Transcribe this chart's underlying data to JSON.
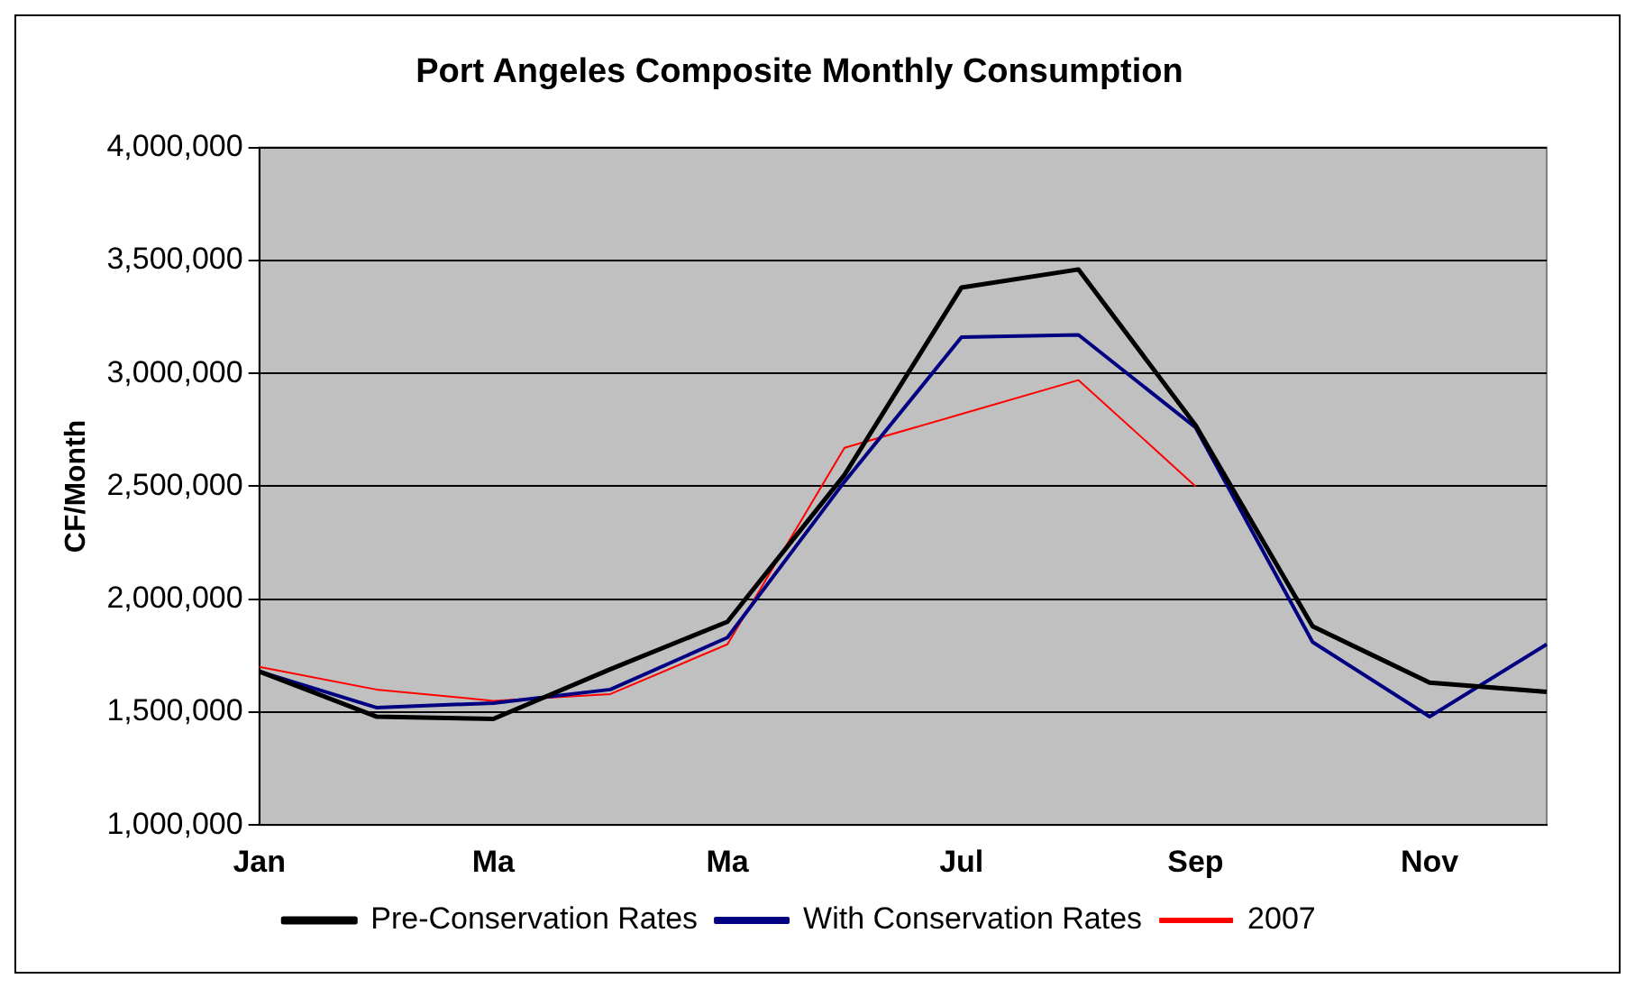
{
  "chart_data": {
    "type": "line",
    "title": "Port Angeles Composite Monthly Consumption",
    "ylabel": "CF/Month",
    "categories": [
      "Jan",
      null,
      "Ma",
      null,
      "Ma",
      null,
      "Jul",
      null,
      "Sep",
      null,
      "Nov",
      null
    ],
    "series": [
      {
        "name": "Pre-Conservation Rates",
        "color": "#000000",
        "values": [
          1680000,
          1480000,
          1470000,
          1690000,
          1900000,
          2550000,
          3380000,
          3460000,
          2770000,
          1880000,
          1630000,
          1590000
        ]
      },
      {
        "name": "With Conservation Rates",
        "color": "#000080",
        "values": [
          1680000,
          1520000,
          1540000,
          1600000,
          1830000,
          2520000,
          3160000,
          3170000,
          2760000,
          1810000,
          1480000,
          1800000
        ]
      },
      {
        "name": "2007",
        "color": "#ff0000",
        "values": [
          1700000,
          1600000,
          1550000,
          1580000,
          1800000,
          2670000,
          2820000,
          2970000,
          2500000,
          null,
          null,
          null
        ]
      }
    ],
    "ylim": [
      1000000,
      4000000
    ],
    "yticks": [
      {
        "value": 1000000,
        "label": "1,000,000"
      },
      {
        "value": 1500000,
        "label": "1,500,000"
      },
      {
        "value": 2000000,
        "label": "2,000,000"
      },
      {
        "value": 2500000,
        "label": "2,500,000"
      },
      {
        "value": 3000000,
        "label": "3,000,000"
      },
      {
        "value": 3500000,
        "label": "3,500,000"
      },
      {
        "value": 4000000,
        "label": "4,000,000"
      }
    ],
    "grid": "y",
    "legend": "bottom",
    "marker": "none",
    "line_style": "solid"
  }
}
